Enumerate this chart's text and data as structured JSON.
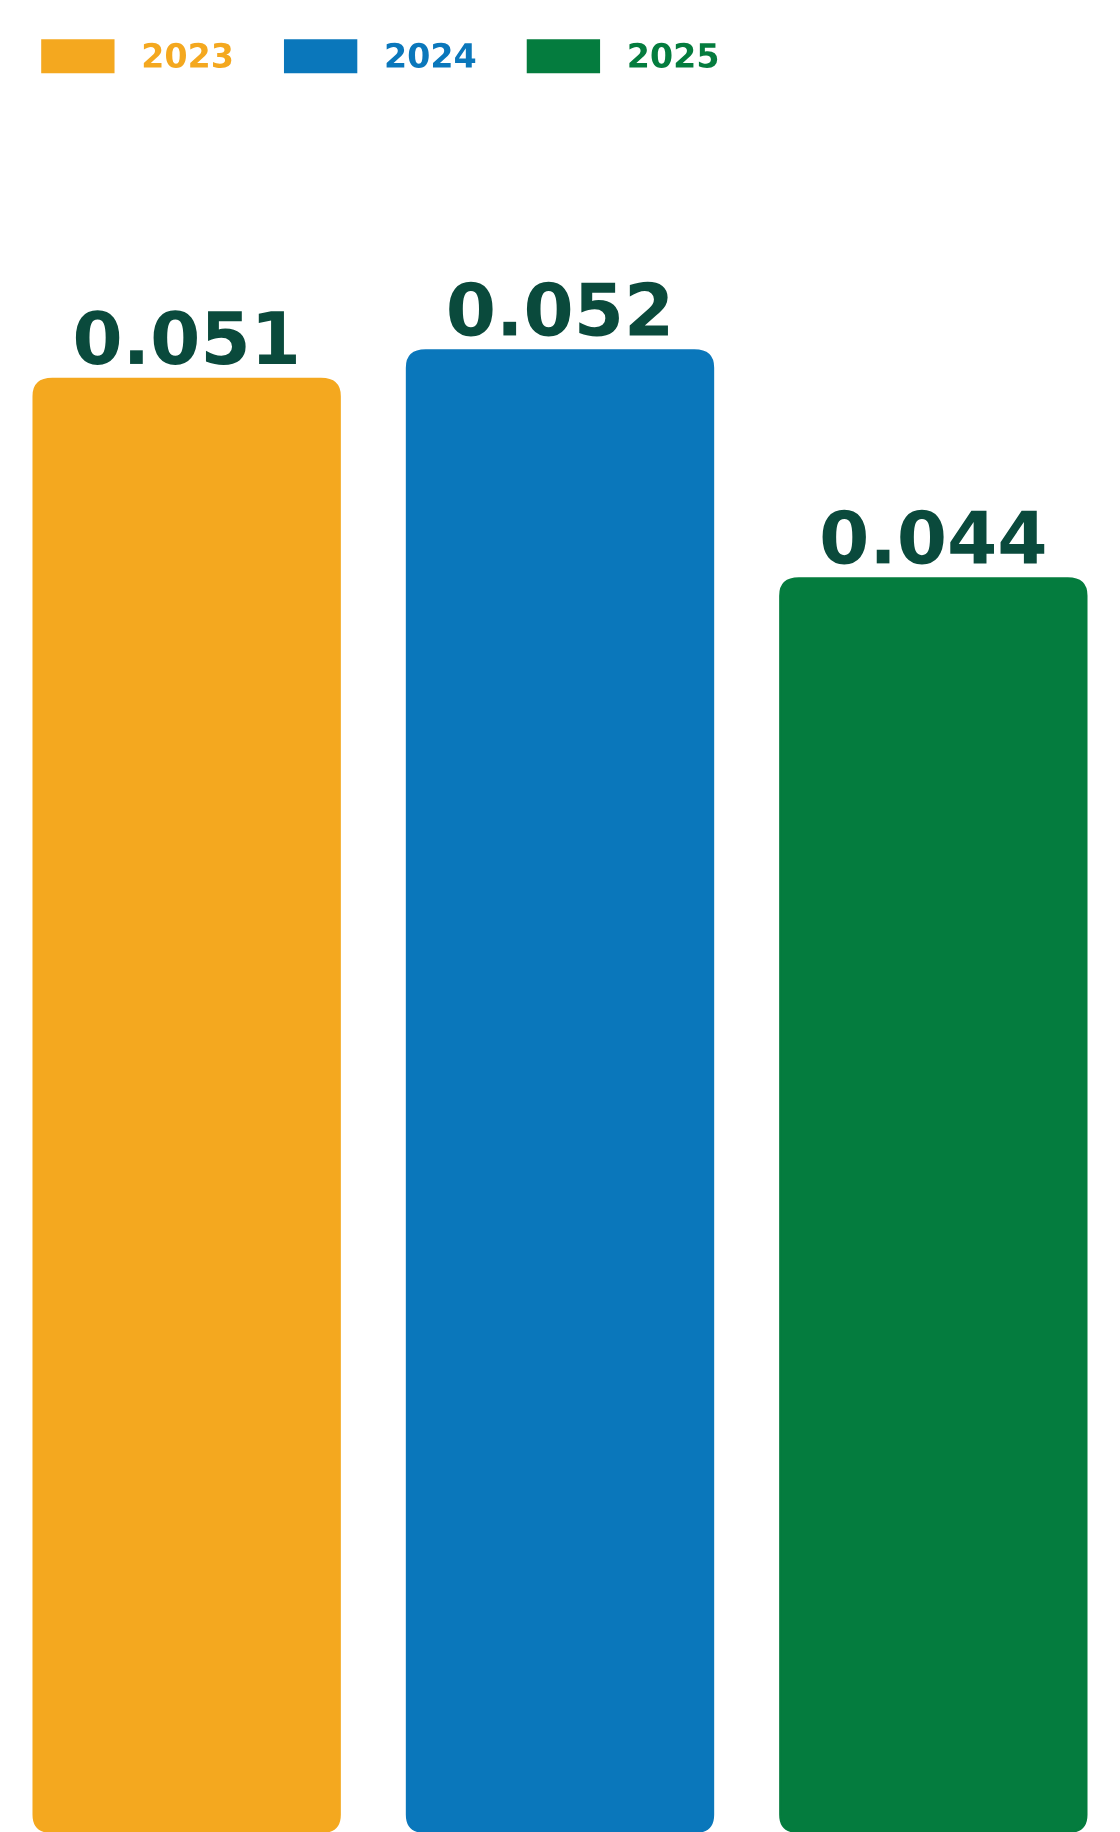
{
  "chart_data": {
    "type": "bar",
    "categories": [
      null
    ],
    "series": [
      {
        "name": "2023",
        "color": "#f4a81f",
        "values": [
          0.051
        ]
      },
      {
        "name": "2024",
        "color": "#0a77bb",
        "values": [
          0.052
        ]
      },
      {
        "name": "2025",
        "color": "#047c3e",
        "values": [
          0.044
        ]
      }
    ],
    "data_labels": true,
    "legend": "top left"
  }
}
